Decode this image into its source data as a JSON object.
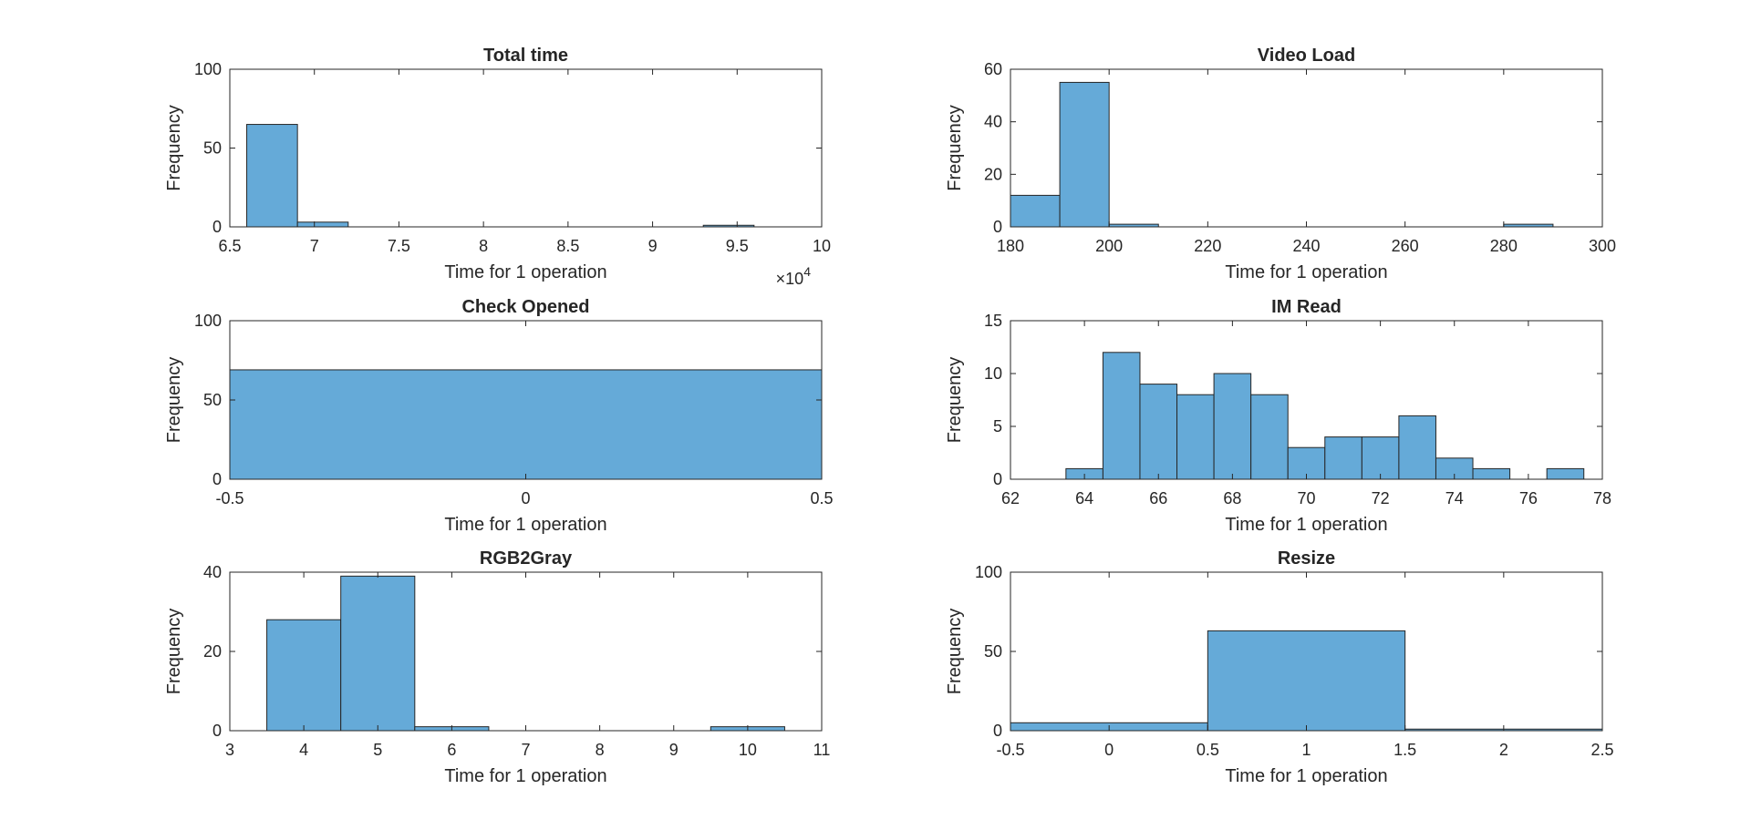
{
  "figure": {
    "background": "#ffffff",
    "bar_color": "#65aad8",
    "edge_color": "#262626"
  },
  "chart_data": [
    {
      "type": "bar",
      "title": "Total time",
      "xlabel": "Time for 1 operation",
      "ylabel": "Frequency",
      "xlim": [
        65000,
        100000
      ],
      "ylim": [
        0,
        100
      ],
      "xticks": [
        65000,
        70000,
        75000,
        80000,
        85000,
        90000,
        95000,
        100000
      ],
      "xtick_labels": [
        "6.5",
        "7",
        "7.5",
        "8",
        "8.5",
        "9",
        "9.5",
        "10"
      ],
      "yticks": [
        0,
        50,
        100
      ],
      "ytick_labels": [
        "0",
        "50",
        "100"
      ],
      "exponent_base": "×10",
      "exponent_power": "4",
      "bin_edges": [
        66000,
        69000,
        72000,
        75000,
        78000,
        81000,
        84000,
        87000,
        90000,
        93000,
        96000
      ],
      "values": [
        65,
        3,
        0,
        0,
        0,
        0,
        0,
        0,
        0,
        1
      ]
    },
    {
      "type": "bar",
      "title": "Video Load",
      "xlabel": "Time for 1 operation",
      "ylabel": "Frequency",
      "xlim": [
        180,
        300
      ],
      "ylim": [
        0,
        60
      ],
      "xticks": [
        180,
        200,
        220,
        240,
        260,
        280,
        300
      ],
      "xtick_labels": [
        "180",
        "200",
        "220",
        "240",
        "260",
        "280",
        "300"
      ],
      "yticks": [
        0,
        20,
        40,
        60
      ],
      "ytick_labels": [
        "0",
        "20",
        "40",
        "60"
      ],
      "bin_edges": [
        180,
        190,
        200,
        210,
        220,
        230,
        240,
        250,
        260,
        270,
        280,
        290
      ],
      "values": [
        12,
        55,
        1,
        0,
        0,
        0,
        0,
        0,
        0,
        0,
        1
      ]
    },
    {
      "type": "bar",
      "title": "Check Opened",
      "xlabel": "Time for 1 operation",
      "ylabel": "Frequency",
      "xlim": [
        -0.5,
        0.5
      ],
      "ylim": [
        0,
        100
      ],
      "xticks": [
        -0.5,
        0,
        0.5
      ],
      "xtick_labels": [
        "-0.5",
        "0",
        "0.5"
      ],
      "yticks": [
        0,
        50,
        100
      ],
      "ytick_labels": [
        "0",
        "50",
        "100"
      ],
      "bin_edges": [
        -0.5,
        0.5
      ],
      "values": [
        69
      ]
    },
    {
      "type": "bar",
      "title": "IM Read",
      "xlabel": "Time for 1 operation",
      "ylabel": "Frequency",
      "xlim": [
        62,
        78
      ],
      "ylim": [
        0,
        15
      ],
      "xticks": [
        62,
        64,
        66,
        68,
        70,
        72,
        74,
        76,
        78
      ],
      "xtick_labels": [
        "62",
        "64",
        "66",
        "68",
        "70",
        "72",
        "74",
        "76",
        "78"
      ],
      "yticks": [
        0,
        5,
        10,
        15
      ],
      "ytick_labels": [
        "0",
        "5",
        "10",
        "15"
      ],
      "bin_edges": [
        63.5,
        64.5,
        65.5,
        66.5,
        67.5,
        68.5,
        69.5,
        70.5,
        71.5,
        72.5,
        73.5,
        74.5,
        75.5,
        76.5,
        77.5
      ],
      "values": [
        1,
        12,
        9,
        8,
        10,
        8,
        3,
        4,
        4,
        6,
        2,
        1,
        0,
        1
      ]
    },
    {
      "type": "bar",
      "title": "RGB2Gray",
      "xlabel": "Time for 1 operation",
      "ylabel": "Frequency",
      "xlim": [
        3,
        11
      ],
      "ylim": [
        0,
        40
      ],
      "xticks": [
        3,
        4,
        5,
        6,
        7,
        8,
        9,
        10,
        11
      ],
      "xtick_labels": [
        "3",
        "4",
        "5",
        "6",
        "7",
        "8",
        "9",
        "10",
        "11"
      ],
      "yticks": [
        0,
        20,
        40
      ],
      "ytick_labels": [
        "0",
        "20",
        "40"
      ],
      "bin_edges": [
        3.5,
        4.5,
        5.5,
        6.5,
        7.5,
        8.5,
        9.5,
        10.5
      ],
      "values": [
        28,
        39,
        1,
        0,
        0,
        0,
        1
      ]
    },
    {
      "type": "bar",
      "title": "Resize",
      "xlabel": "Time for 1 operation",
      "ylabel": "Frequency",
      "xlim": [
        -0.5,
        2.5
      ],
      "ylim": [
        0,
        100
      ],
      "xticks": [
        -0.5,
        0,
        0.5,
        1,
        1.5,
        2,
        2.5
      ],
      "xtick_labels": [
        "-0.5",
        "0",
        "0.5",
        "1",
        "1.5",
        "2",
        "2.5"
      ],
      "yticks": [
        0,
        50,
        100
      ],
      "ytick_labels": [
        "0",
        "50",
        "100"
      ],
      "bin_edges": [
        -0.5,
        0.5,
        1.5,
        2.5
      ],
      "values": [
        5,
        63,
        1
      ]
    }
  ]
}
